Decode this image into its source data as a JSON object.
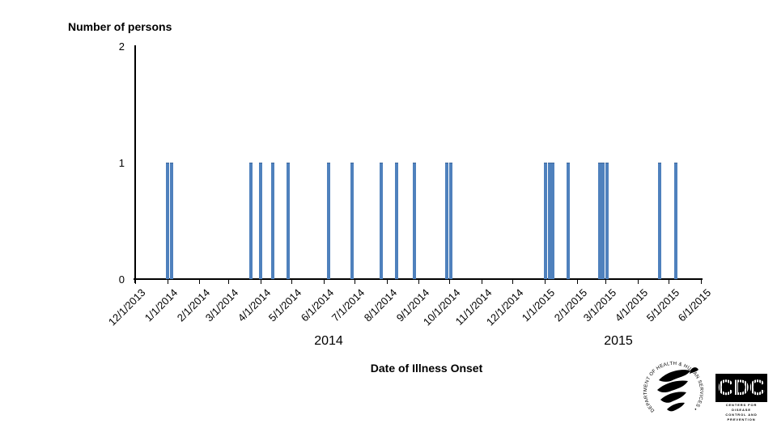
{
  "chart_data": {
    "type": "bar",
    "title": "Number of persons",
    "xlabel": "Date of Illness Onset",
    "ylabel": "Number of persons",
    "ylim": [
      0,
      2
    ],
    "yticks": [
      0,
      1,
      2
    ],
    "xticks": [
      "12/1/2013",
      "1/1/2014",
      "2/1/2014",
      "3/1/2014",
      "4/1/2014",
      "5/1/2014",
      "6/1/2014",
      "7/1/2014",
      "8/1/2014",
      "9/1/2014",
      "10/1/2014",
      "11/1/2014",
      "12/1/2014",
      "1/1/2015",
      "2/1/2015",
      "3/1/2015",
      "4/1/2015",
      "5/1/2015",
      "6/1/2015"
    ],
    "year_labels": [
      "2014",
      "2015"
    ],
    "grid": false,
    "legend": null,
    "bar_color": "#4F81BD",
    "bar_edge_color": "#3F689C",
    "axis_color": "#000000",
    "cases": [
      {
        "date": "1/1/2014",
        "count": 1
      },
      {
        "date": "1/5/2014",
        "count": 1
      },
      {
        "date": "3/23/2014",
        "count": 1
      },
      {
        "date": "4/1/2014",
        "count": 1
      },
      {
        "date": "4/13/2014",
        "count": 1
      },
      {
        "date": "4/28/2014",
        "count": 1
      },
      {
        "date": "6/6/2014",
        "count": 1
      },
      {
        "date": "6/29/2014",
        "count": 1
      },
      {
        "date": "7/27/2014",
        "count": 1
      },
      {
        "date": "8/11/2014",
        "count": 1
      },
      {
        "date": "8/28/2014",
        "count": 1
      },
      {
        "date": "9/28/2014",
        "count": 1
      },
      {
        "date": "10/2/2014",
        "count": 1
      },
      {
        "date": "1/2/2015",
        "count": 1
      },
      {
        "date": "1/6/2015",
        "count": 1
      },
      {
        "date": "1/9/2015",
        "count": 1
      },
      {
        "date": "1/24/2015",
        "count": 1
      },
      {
        "date": "2/23/2015",
        "count": 1
      },
      {
        "date": "2/26/2015",
        "count": 1
      },
      {
        "date": "3/2/2015",
        "count": 1
      },
      {
        "date": "4/22/2015",
        "count": 1
      },
      {
        "date": "5/8/2015",
        "count": 1
      }
    ]
  },
  "logos": {
    "hhs_ring_text": "DEPARTMENT OF HEALTH & HUMAN SERVICES • USA",
    "cdc": {
      "acronym": "CDC",
      "line1": "CENTERS FOR DISEASE",
      "line2": "CONTROL AND PREVENTION"
    }
  }
}
